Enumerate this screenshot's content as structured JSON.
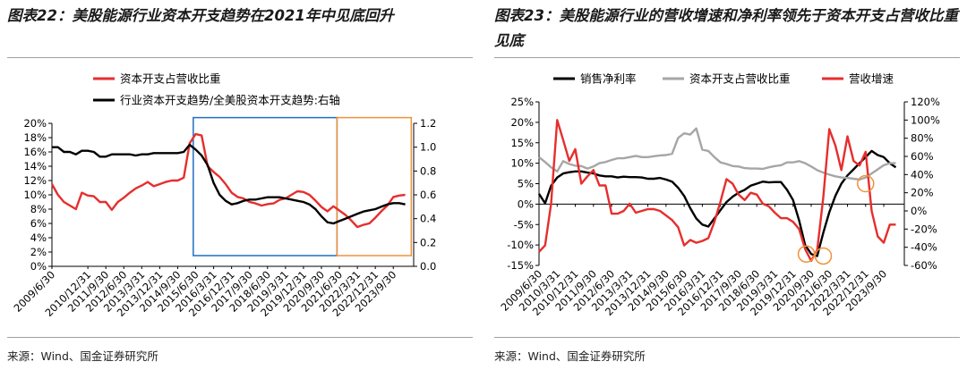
{
  "left": {
    "title": "图表22：美股能源行业资本开支趋势在2021年中见底回升",
    "source": "来源：Wind、国金证券研究所",
    "chart_data": {
      "type": "line",
      "title": "图表22：美股能源行业资本开支趋势在2021年中见底回升",
      "legend_position": "top",
      "grid": false,
      "y_left": {
        "min": 0,
        "max": 20,
        "step": 2,
        "unit": "%",
        "ticks": [
          "20%",
          "18%",
          "16%",
          "14%",
          "12%",
          "10%",
          "8%",
          "6%",
          "4%",
          "2%",
          "0%"
        ]
      },
      "y_right": {
        "min": 0,
        "max": 1.2,
        "step": 0.2,
        "ticks": [
          "1.2",
          "1.0",
          "0.8",
          "0.6",
          "0.4",
          "0.2",
          "0.0"
        ]
      },
      "x_range": [
        2009.5,
        2024.6
      ],
      "x_tick_labels": [
        "2009/6/30",
        "2010/12/31",
        "2011/9/30",
        "2012/6/30",
        "2013/3/31",
        "2013/12/31",
        "2014/9/30",
        "2015/6/30",
        "2016/3/31",
        "2016/12/31",
        "2017/9/30",
        "2018/6/30",
        "2019/3/31",
        "2019/12/31",
        "2020/9/30",
        "2021/6/30",
        "2022/3/31",
        "2022/12/31",
        "2023/9/30"
      ],
      "x_tick_values": [
        2009.5,
        2011.0,
        2011.75,
        2012.5,
        2013.25,
        2014.0,
        2014.75,
        2015.5,
        2016.25,
        2017.0,
        2017.75,
        2018.5,
        2019.25,
        2020.0,
        2020.75,
        2021.5,
        2022.25,
        2023.0,
        2023.75
      ],
      "boxes": [
        {
          "name": "blue-box",
          "color": "#1f6fc1",
          "x_from": 2015.4,
          "x_to": 2021.4,
          "y_from": 1.5,
          "y_to": 20.8
        },
        {
          "name": "orange-box",
          "color": "#f0923a",
          "x_from": 2021.4,
          "x_to": 2024.5,
          "y_from": 1.5,
          "y_to": 20.8
        }
      ],
      "series": [
        {
          "name": "资本开支占营收比重",
          "color": "#e62e2d",
          "axis": "left",
          "x": [
            2009.5,
            2009.75,
            2010.0,
            2010.25,
            2010.5,
            2010.75,
            2011.0,
            2011.25,
            2011.5,
            2011.75,
            2012.0,
            2012.25,
            2012.5,
            2012.75,
            2013.0,
            2013.25,
            2013.5,
            2013.75,
            2014.0,
            2014.25,
            2014.5,
            2014.75,
            2015.0,
            2015.25,
            2015.5,
            2015.75,
            2016.0,
            2016.25,
            2016.5,
            2016.75,
            2017.0,
            2017.25,
            2017.5,
            2017.75,
            2018.0,
            2018.25,
            2018.5,
            2018.75,
            2019.0,
            2019.25,
            2019.5,
            2019.75,
            2020.0,
            2020.25,
            2020.5,
            2020.75,
            2021.0,
            2021.25,
            2021.5,
            2021.75,
            2022.0,
            2022.25,
            2022.5,
            2022.75,
            2023.0,
            2023.25,
            2023.5,
            2023.75,
            2024.0,
            2024.25
          ],
          "y": [
            11.5,
            10.0,
            9.0,
            8.5,
            8.0,
            10.3,
            9.9,
            9.8,
            9.0,
            9.0,
            7.9,
            9.0,
            9.6,
            10.3,
            10.9,
            11.3,
            11.8,
            11.2,
            11.5,
            11.8,
            12.0,
            12.0,
            12.4,
            17.2,
            18.5,
            18.3,
            14.0,
            13.2,
            12.5,
            11.5,
            10.3,
            9.7,
            9.5,
            9.0,
            8.8,
            8.5,
            8.7,
            8.8,
            9.3,
            9.5,
            10.0,
            10.5,
            10.4,
            10.0,
            9.2,
            8.3,
            7.7,
            8.4,
            7.8,
            7.2,
            6.4,
            5.5,
            5.8,
            6.0,
            6.8,
            7.7,
            8.5,
            9.7,
            9.9,
            10.0
          ]
        },
        {
          "name": "行业资本开支趋势/全美股资本开支趋势:右轴",
          "color": "#000000",
          "axis": "right",
          "x": [
            2009.5,
            2009.75,
            2010.0,
            2010.25,
            2010.5,
            2010.75,
            2011.0,
            2011.25,
            2011.5,
            2011.75,
            2012.0,
            2012.25,
            2012.5,
            2012.75,
            2013.0,
            2013.25,
            2013.5,
            2013.75,
            2014.0,
            2014.25,
            2014.5,
            2014.75,
            2015.0,
            2015.25,
            2015.5,
            2015.75,
            2016.0,
            2016.25,
            2016.5,
            2016.75,
            2017.0,
            2017.25,
            2017.5,
            2017.75,
            2018.0,
            2018.25,
            2018.5,
            2018.75,
            2019.0,
            2019.25,
            2019.5,
            2019.75,
            2020.0,
            2020.25,
            2020.5,
            2020.75,
            2021.0,
            2021.25,
            2021.5,
            2021.75,
            2022.0,
            2022.25,
            2022.5,
            2022.75,
            2023.0,
            2023.25,
            2023.5,
            2023.75,
            2024.0,
            2024.25
          ],
          "y": [
            1.0,
            1.0,
            0.96,
            0.96,
            0.94,
            0.97,
            0.97,
            0.96,
            0.92,
            0.92,
            0.94,
            0.94,
            0.94,
            0.94,
            0.93,
            0.94,
            0.94,
            0.95,
            0.95,
            0.95,
            0.95,
            0.95,
            0.96,
            1.02,
            0.98,
            0.93,
            0.85,
            0.7,
            0.6,
            0.55,
            0.52,
            0.53,
            0.55,
            0.56,
            0.56,
            0.57,
            0.58,
            0.58,
            0.58,
            0.57,
            0.56,
            0.55,
            0.54,
            0.52,
            0.48,
            0.42,
            0.37,
            0.36,
            0.38,
            0.4,
            0.42,
            0.44,
            0.46,
            0.47,
            0.48,
            0.5,
            0.52,
            0.53,
            0.53,
            0.52
          ]
        }
      ]
    }
  },
  "right": {
    "title": "图表23：美股能源行业的营收增速和净利率领先于资本开支占营收比重见底",
    "source": "来源：Wind、国金证券研究所",
    "chart_data": {
      "type": "line",
      "title": "图表23：美股能源行业的营收增速和净利率领先于资本开支占营收比重见底",
      "legend_position": "top",
      "grid": false,
      "y_left": {
        "min": -15,
        "max": 25,
        "step": 5,
        "unit": "%",
        "ticks": [
          "25%",
          "20%",
          "15%",
          "10%",
          "5%",
          "0%",
          "-5%",
          "-10%",
          "-15%"
        ]
      },
      "y_right": {
        "min": -60,
        "max": 120,
        "step": 20,
        "unit": "%",
        "ticks": [
          "120%",
          "100%",
          "80%",
          "60%",
          "40%",
          "20%",
          "0%",
          "-20%",
          "-40%",
          "-60%"
        ]
      },
      "x_range": [
        2009.5,
        2024.6
      ],
      "x_tick_labels": [
        "2009/6/30",
        "2010/3/31",
        "2010/12/31",
        "2011/9/30",
        "2012/6/30",
        "2013/3/31",
        "2013/12/31",
        "2014/9/30",
        "2015/6/30",
        "2016/3/31",
        "2016/12/31",
        "2017/9/30",
        "2018/6/30",
        "2019/3/31",
        "2019/12/31",
        "2020/9/30",
        "2021/6/30",
        "2022/3/31",
        "2022/12/31",
        "2023/9/30"
      ],
      "x_tick_values": [
        2009.5,
        2010.25,
        2011.0,
        2011.75,
        2012.5,
        2013.25,
        2014.0,
        2014.75,
        2015.5,
        2016.25,
        2017.0,
        2017.75,
        2018.5,
        2019.25,
        2020.0,
        2020.75,
        2021.5,
        2022.25,
        2023.0,
        2023.75
      ],
      "circles": [
        {
          "name": "circle-marker",
          "x": 2020.55,
          "y_left": -12.2
        },
        {
          "name": "circle-marker",
          "x": 2021.25,
          "y_left": -12.7
        },
        {
          "name": "circle-marker",
          "x": 2023.0,
          "y_left": 5.0
        }
      ],
      "series": [
        {
          "name": "销售净利率",
          "color": "#000000",
          "axis": "left",
          "x": [
            2009.5,
            2009.75,
            2010.0,
            2010.25,
            2010.5,
            2010.75,
            2011.0,
            2011.25,
            2011.5,
            2011.75,
            2012.0,
            2012.25,
            2012.5,
            2012.75,
            2013.0,
            2013.25,
            2013.5,
            2013.75,
            2014.0,
            2014.25,
            2014.5,
            2014.75,
            2015.0,
            2015.25,
            2015.5,
            2015.75,
            2016.0,
            2016.25,
            2016.5,
            2016.75,
            2017.0,
            2017.25,
            2017.5,
            2017.75,
            2018.0,
            2018.25,
            2018.5,
            2018.75,
            2019.0,
            2019.25,
            2019.5,
            2019.75,
            2020.0,
            2020.25,
            2020.5,
            2020.75,
            2021.0,
            2021.25,
            2021.5,
            2021.75,
            2022.0,
            2022.25,
            2022.5,
            2022.75,
            2023.0,
            2023.25,
            2023.5,
            2023.75,
            2024.0,
            2024.25
          ],
          "y": [
            2.5,
            0.2,
            4.5,
            6.5,
            7.5,
            7.8,
            8.0,
            8.0,
            7.7,
            7.5,
            7.0,
            6.8,
            6.8,
            6.5,
            6.7,
            6.6,
            6.6,
            6.5,
            6.2,
            6.2,
            6.4,
            6.0,
            5.5,
            4.0,
            2.0,
            -1.0,
            -3.5,
            -5.0,
            -5.5,
            -3.5,
            -1.5,
            0.5,
            1.8,
            2.8,
            3.5,
            4.5,
            5.0,
            5.5,
            5.3,
            5.4,
            5.4,
            3.5,
            1.0,
            -4.0,
            -10.0,
            -12.2,
            -12.7,
            -7.0,
            -2.0,
            2.0,
            5.0,
            7.0,
            8.5,
            10.0,
            11.5,
            13.0,
            12.0,
            11.5,
            10.0,
            9.0
          ]
        },
        {
          "name": "资本开支占营收比重",
          "color": "#a6a6a6",
          "axis": "left",
          "x": [
            2009.5,
            2009.75,
            2010.0,
            2010.25,
            2010.5,
            2010.75,
            2011.0,
            2011.25,
            2011.5,
            2011.75,
            2012.0,
            2012.25,
            2012.5,
            2012.75,
            2013.0,
            2013.25,
            2013.5,
            2013.75,
            2014.0,
            2014.25,
            2014.5,
            2014.75,
            2015.0,
            2015.25,
            2015.5,
            2015.75,
            2016.0,
            2016.25,
            2016.5,
            2016.75,
            2017.0,
            2017.25,
            2017.5,
            2017.75,
            2018.0,
            2018.25,
            2018.5,
            2018.75,
            2019.0,
            2019.25,
            2019.5,
            2019.75,
            2020.0,
            2020.25,
            2020.5,
            2020.75,
            2021.0,
            2021.25,
            2021.5,
            2021.75,
            2022.0,
            2022.25,
            2022.5,
            2022.75,
            2023.0,
            2023.25,
            2023.5,
            2023.75,
            2024.0,
            2024.25
          ],
          "y": [
            11.5,
            10.3,
            9.0,
            8.0,
            10.5,
            9.8,
            9.4,
            9.3,
            8.7,
            9.2,
            10.0,
            10.3,
            10.8,
            11.2,
            11.2,
            11.5,
            11.8,
            11.5,
            11.5,
            11.7,
            11.9,
            12.0,
            12.3,
            16.2,
            17.3,
            17.0,
            18.5,
            13.3,
            13.0,
            11.5,
            10.2,
            9.8,
            9.3,
            9.2,
            8.8,
            8.7,
            8.7,
            8.6,
            9.0,
            9.3,
            9.5,
            10.2,
            10.2,
            10.5,
            10.0,
            9.2,
            8.3,
            7.7,
            7.2,
            6.8,
            6.5,
            6.4,
            6.2,
            6.0,
            6.5,
            7.5,
            8.5,
            9.5,
            10.0,
            10.0
          ]
        },
        {
          "name": "营收增速",
          "color": "#e62e2d",
          "axis": "right",
          "x": [
            2009.5,
            2009.75,
            2010.0,
            2010.25,
            2010.5,
            2010.75,
            2011.0,
            2011.25,
            2011.5,
            2011.75,
            2012.0,
            2012.25,
            2012.5,
            2012.75,
            2013.0,
            2013.25,
            2013.5,
            2013.75,
            2014.0,
            2014.25,
            2014.5,
            2014.75,
            2015.0,
            2015.25,
            2015.5,
            2015.75,
            2016.0,
            2016.25,
            2016.5,
            2016.75,
            2017.0,
            2017.25,
            2017.5,
            2017.75,
            2018.0,
            2018.25,
            2018.5,
            2018.75,
            2019.0,
            2019.25,
            2019.5,
            2019.75,
            2020.0,
            2020.25,
            2020.5,
            2020.75,
            2021.0,
            2021.25,
            2021.5,
            2021.75,
            2022.0,
            2022.25,
            2022.5,
            2022.75,
            2023.0,
            2023.25,
            2023.5,
            2023.75,
            2024.0,
            2024.25
          ],
          "y": [
            -45,
            -38,
            8,
            100,
            78,
            55,
            68,
            30,
            38,
            45,
            28,
            28,
            -3,
            -3,
            0,
            8,
            -2,
            0,
            2,
            2,
            0,
            -5,
            -10,
            -18,
            -38,
            -32,
            -35,
            -33,
            -30,
            -12,
            10,
            35,
            30,
            18,
            12,
            20,
            18,
            8,
            5,
            -2,
            -8,
            -8,
            -12,
            -20,
            -42,
            -55,
            -43,
            15,
            90,
            72,
            45,
            82,
            55,
            50,
            65,
            0,
            -28,
            -35,
            -15,
            -15
          ]
        }
      ]
    }
  }
}
